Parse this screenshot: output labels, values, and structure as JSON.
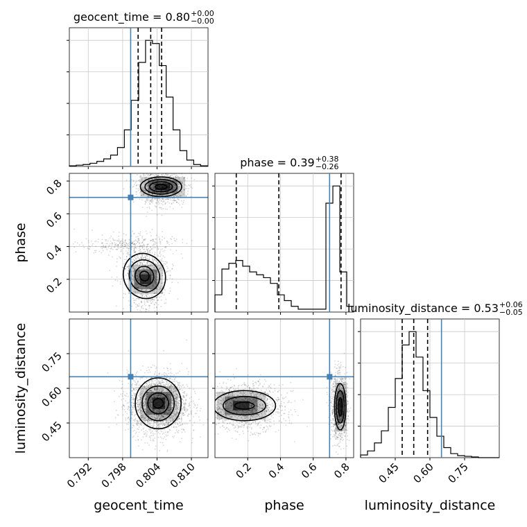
{
  "chart_data": {
    "type": "corner",
    "parameters": [
      "geocent_time",
      "phase",
      "luminosity_distance"
    ],
    "axis_labels": {
      "geocent_time": "geocent_time",
      "phase": "phase",
      "luminosity_distance": "luminosity_distance"
    },
    "truths": {
      "geocent_time": 0.7994,
      "phase": 0.7,
      "luminosity_distance": 0.65
    },
    "ranges": {
      "geocent_time": [
        0.7887,
        0.8129
      ],
      "phase": [
        0.0,
        0.8469
      ],
      "luminosity_distance": [
        0.3,
        0.9
      ]
    },
    "ticks": {
      "geocent_time": [
        0.792,
        0.798,
        0.804,
        0.81
      ],
      "phase": [
        0.2,
        0.4,
        0.6,
        0.8
      ],
      "luminosity_distance": [
        0.45,
        0.6,
        0.75
      ]
    },
    "tick_labels": {
      "geocent_time": [
        "0.792",
        "0.798",
        "0.804",
        "0.810"
      ],
      "phase": [
        "0.2",
        "0.4",
        "0.6",
        "0.8"
      ],
      "luminosity_distance": [
        "0.45",
        "0.60",
        "0.75"
      ]
    },
    "titles": [
      {
        "param": "geocent_time",
        "name": "geocent_time",
        "median": "0.80",
        "plus": "+0.00",
        "minus": "−0.00"
      },
      {
        "param": "phase",
        "name": "phase",
        "median": "0.39",
        "plus": "+0.38",
        "minus": "−0.26"
      },
      {
        "param": "luminosity_distance",
        "name": "luminosity_distance",
        "median": "0.53",
        "plus": "+0.06",
        "minus": "−0.05"
      }
    ],
    "quantiles": {
      "geocent_time": [
        0.8007,
        0.8029,
        0.8048
      ],
      "phase": [
        0.13,
        0.39,
        0.77
      ],
      "luminosity_distance": [
        0.48,
        0.53,
        0.59
      ]
    },
    "histograms": {
      "geocent_time": {
        "edges": [
          0.7887,
          0.7899,
          0.7911,
          0.7923,
          0.7935,
          0.7947,
          0.7959,
          0.7971,
          0.7983,
          0.7995,
          0.8008,
          0.802,
          0.8032,
          0.8044,
          0.8056,
          0.8068,
          0.808,
          0.8092,
          0.8104,
          0.8116,
          0.8129
        ],
        "counts": [
          1,
          2,
          3,
          5,
          8,
          12,
          18,
          30,
          58,
          105,
          165,
          200,
          195,
          160,
          110,
          58,
          25,
          10,
          3,
          1
        ]
      },
      "phase": {
        "edges": [
          0.0,
          0.0424,
          0.0847,
          0.127,
          0.1694,
          0.2118,
          0.2541,
          0.2965,
          0.3388,
          0.3812,
          0.4235,
          0.4659,
          0.5082,
          0.5506,
          0.5929,
          0.6353,
          0.6776,
          0.72,
          0.7624,
          0.8047,
          0.8469
        ],
        "counts": [
          6,
          15,
          17,
          18,
          16,
          14,
          13,
          12,
          10,
          6,
          4,
          2,
          1,
          1,
          1,
          1,
          38,
          44,
          14,
          2
        ]
      },
      "luminosity_distance": {
        "edges": [
          0.3,
          0.33,
          0.36,
          0.39,
          0.42,
          0.45,
          0.48,
          0.51,
          0.54,
          0.57,
          0.6,
          0.63,
          0.66,
          0.69,
          0.72,
          0.75,
          0.78,
          0.81,
          0.84,
          0.87,
          0.9
        ],
        "counts": [
          4,
          10,
          22,
          40,
          75,
          118,
          168,
          188,
          150,
          100,
          60,
          32,
          15,
          6,
          3,
          2,
          1,
          0,
          0,
          0
        ]
      }
    },
    "contour_levels": [
      "0.5σ",
      "1σ",
      "1.5σ",
      "2σ"
    ],
    "colors": {
      "truth": "#4682b4",
      "hist": "#000000",
      "quantile": "#000000",
      "grid": "#c8c8c8",
      "density": "#000000"
    }
  }
}
